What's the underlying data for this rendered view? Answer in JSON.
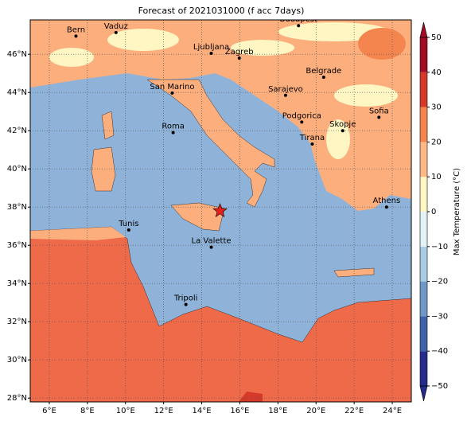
{
  "map": {
    "title": "Forecast of 2021031000 (f acc 7days)",
    "xlim": [
      5,
      25
    ],
    "ylim": [
      27.8,
      47.8
    ],
    "xticks": [
      {
        "value": 6,
        "label": "6°E"
      },
      {
        "value": 8,
        "label": "8°E"
      },
      {
        "value": 10,
        "label": "10°E"
      },
      {
        "value": 12,
        "label": "12°E"
      },
      {
        "value": 14,
        "label": "14°E"
      },
      {
        "value": 16,
        "label": "16°E"
      },
      {
        "value": 18,
        "label": "18°E"
      },
      {
        "value": 20,
        "label": "20°E"
      },
      {
        "value": 22,
        "label": "22°E"
      },
      {
        "value": 24,
        "label": "24°E"
      }
    ],
    "yticks": [
      {
        "value": 28,
        "label": "28°N"
      },
      {
        "value": 30,
        "label": "30°N"
      },
      {
        "value": 32,
        "label": "32°N"
      },
      {
        "value": 34,
        "label": "34°N"
      },
      {
        "value": 36,
        "label": "36°N"
      },
      {
        "value": 38,
        "label": "38°N"
      },
      {
        "value": 40,
        "label": "40°N"
      },
      {
        "value": 42,
        "label": "42°N"
      },
      {
        "value": 44,
        "label": "44°N"
      },
      {
        "value": 46,
        "label": "46°N"
      }
    ],
    "grid": true,
    "cities": [
      {
        "name": "Bern",
        "lon": 7.4,
        "lat": 46.95
      },
      {
        "name": "Vaduz",
        "lon": 9.5,
        "lat": 47.14
      },
      {
        "name": "Budapest",
        "lon": 19.08,
        "lat": 47.5
      },
      {
        "name": "Ljubljana",
        "lon": 14.5,
        "lat": 46.05
      },
      {
        "name": "Zagreb",
        "lon": 15.97,
        "lat": 45.8
      },
      {
        "name": "Belgrade",
        "lon": 20.4,
        "lat": 44.8
      },
      {
        "name": "San Marino",
        "lon": 12.45,
        "lat": 43.97
      },
      {
        "name": "Sarajevo",
        "lon": 18.4,
        "lat": 43.85
      },
      {
        "name": "Sofia",
        "lon": 23.3,
        "lat": 42.7
      },
      {
        "name": "Roma",
        "lon": 12.5,
        "lat": 41.9
      },
      {
        "name": "Podgorica",
        "lon": 19.25,
        "lat": 42.45
      },
      {
        "name": "Skopje",
        "lon": 21.4,
        "lat": 42.0
      },
      {
        "name": "Tirana",
        "lon": 19.8,
        "lat": 41.3
      },
      {
        "name": "Athens",
        "lon": 23.7,
        "lat": 38.0
      },
      {
        "name": "Tunis",
        "lon": 10.17,
        "lat": 36.8
      },
      {
        "name": "La Valette",
        "lon": 14.5,
        "lat": 35.9
      },
      {
        "name": "Tripoli",
        "lon": 13.17,
        "lat": 32.9
      }
    ],
    "star": {
      "lon": 14.96,
      "lat": 37.8,
      "color": "#e8201c"
    },
    "colorbar": {
      "label": "Max Temperature (°C)",
      "lim": [
        -50,
        50
      ],
      "ticks": [
        {
          "value": -50,
          "label": "−50"
        },
        {
          "value": -40,
          "label": "−40"
        },
        {
          "value": -30,
          "label": "−30"
        },
        {
          "value": -20,
          "label": "−20"
        },
        {
          "value": -10,
          "label": "−10"
        },
        0,
        10,
        20,
        30,
        40,
        50
      ],
      "colors": [
        "#262c8c",
        "#3f63aa",
        "#6f98c6",
        "#a9cce3",
        "#e2f2f6",
        "#fff6c3",
        "#fdb985",
        "#f4854f",
        "#d5392a",
        "#a10c26"
      ]
    }
  }
}
